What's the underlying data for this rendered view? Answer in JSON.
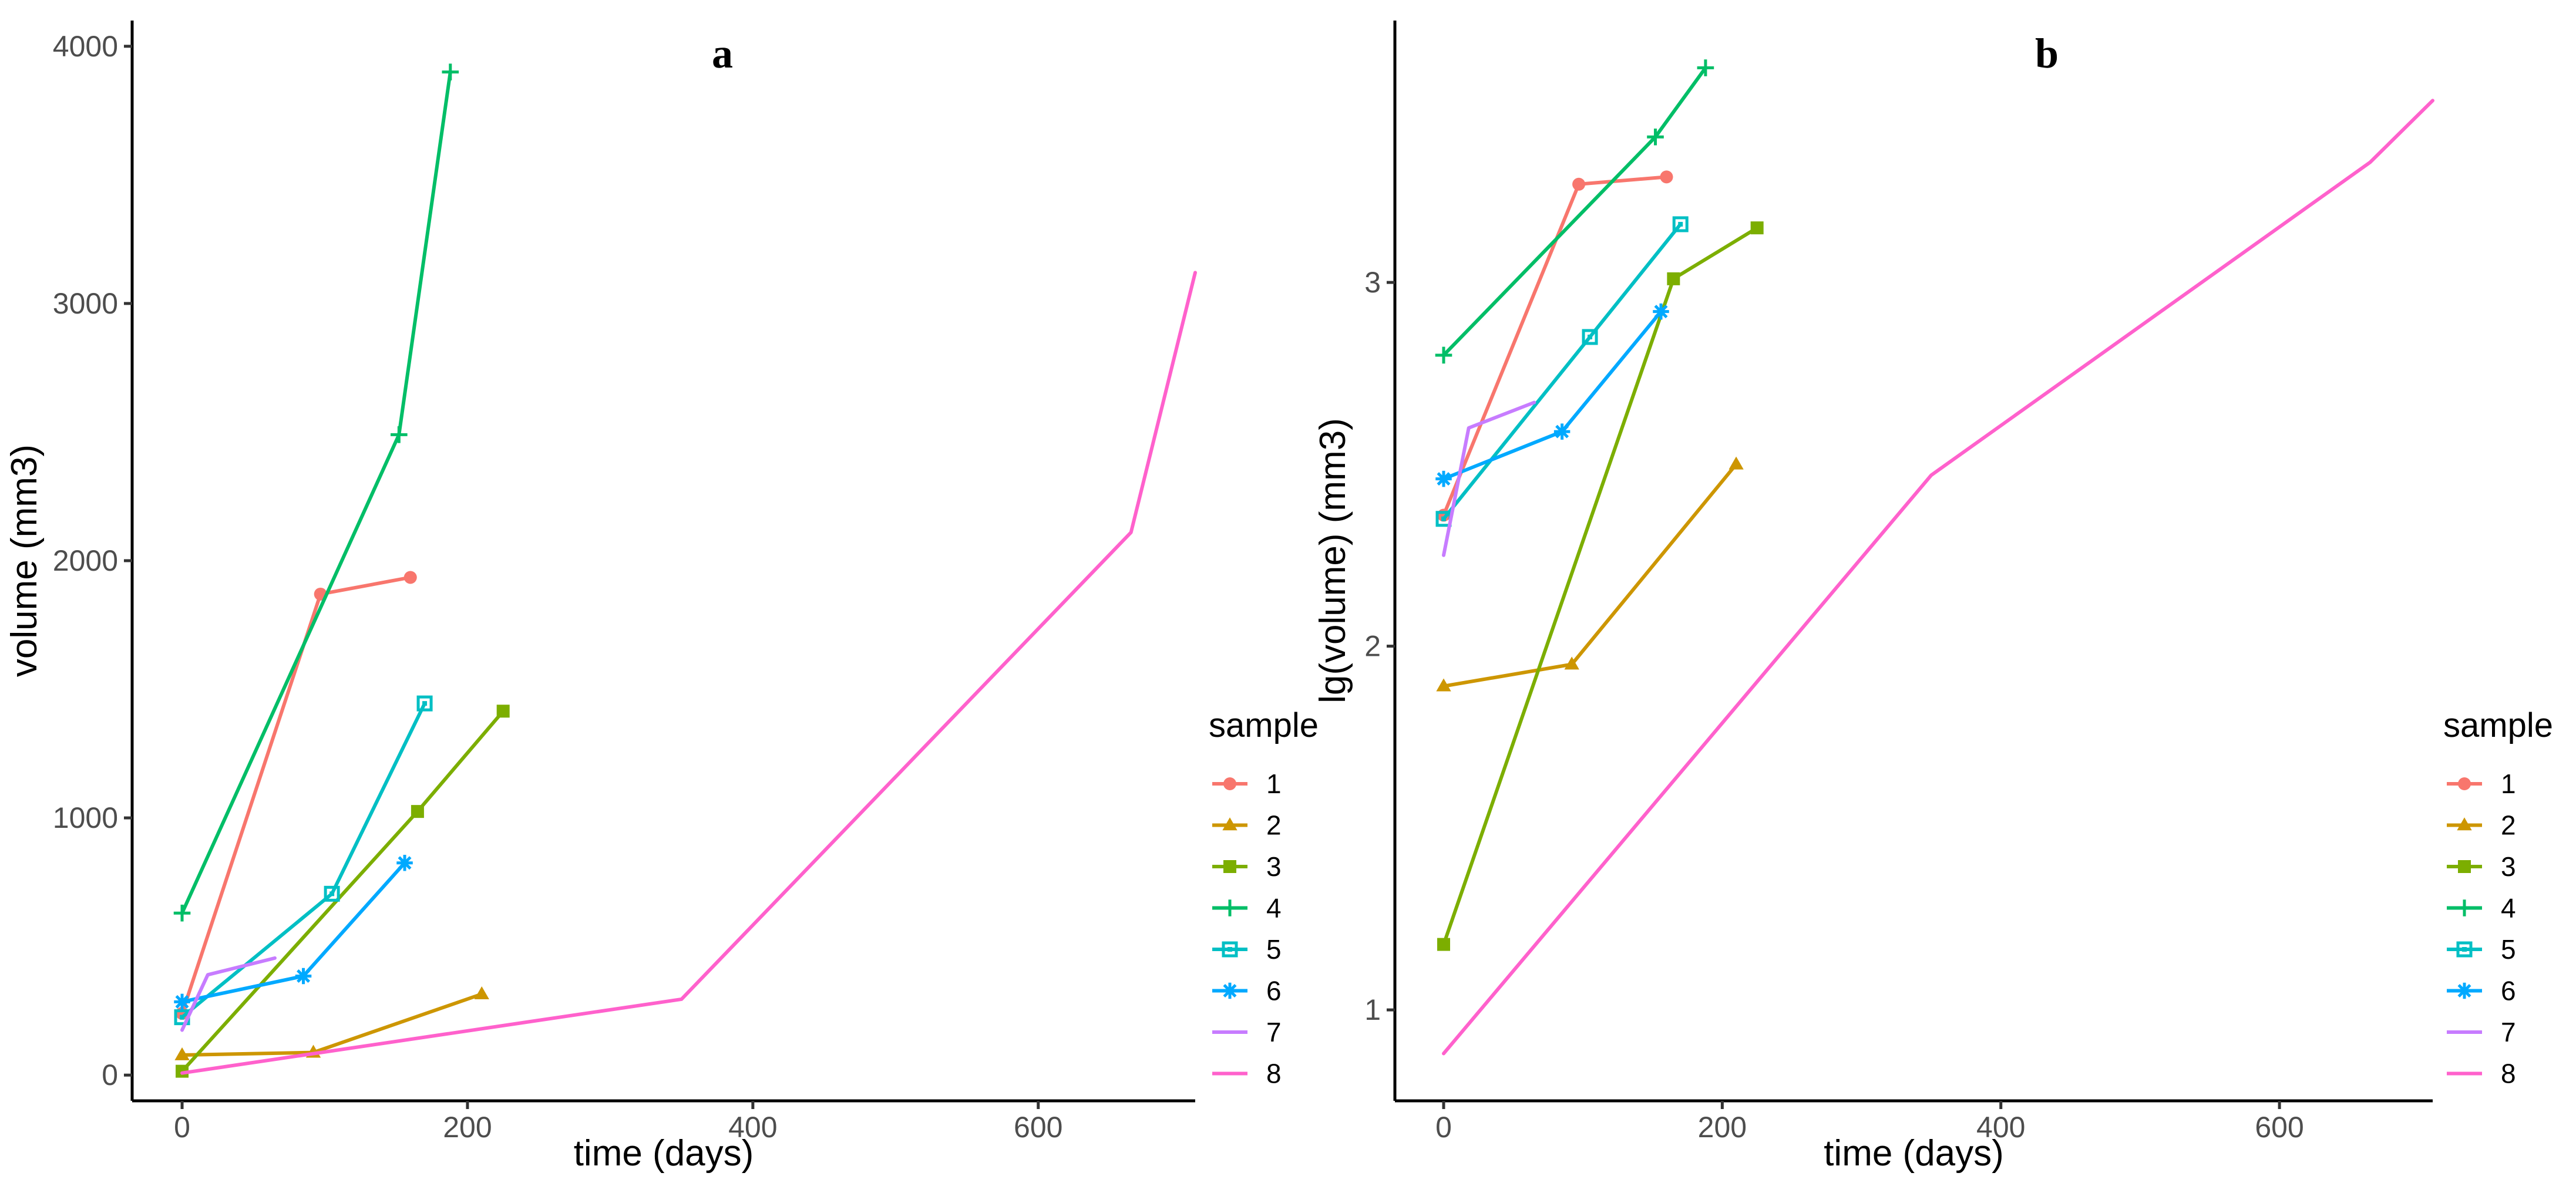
{
  "chart_data": [
    {
      "type": "line",
      "title": "a",
      "xlabel": "time (days)",
      "ylabel": "volume (mm3)",
      "xlim": [
        -35,
        710
      ],
      "ylim": [
        -100,
        4100
      ],
      "xticks": [
        0,
        200,
        400,
        600
      ],
      "yticks": [
        0,
        1000,
        2000,
        3000,
        4000
      ],
      "legend_title": "sample",
      "legend_position": "right",
      "series": [
        {
          "name": "1",
          "color": "#F8766D",
          "marker": "circle",
          "x": [
            0,
            97,
            160
          ],
          "y": [
            240,
            1870,
            1935
          ]
        },
        {
          "name": "2",
          "color": "#CD9600",
          "marker": "triangle",
          "x": [
            0,
            92,
            210
          ],
          "y": [
            78,
            88,
            315
          ]
        },
        {
          "name": "3",
          "color": "#7CAE00",
          "marker": "square",
          "x": [
            0,
            165,
            225
          ],
          "y": [
            15,
            1025,
            1415
          ]
        },
        {
          "name": "4",
          "color": "#00BE67",
          "marker": "plus",
          "x": [
            0,
            152,
            188
          ],
          "y": [
            630,
            2490,
            3900
          ]
        },
        {
          "name": "5",
          "color": "#00BFC4",
          "marker": "boxsquare",
          "x": [
            0,
            105,
            170
          ],
          "y": [
            225,
            705,
            1445
          ]
        },
        {
          "name": "6",
          "color": "#00A9FF",
          "marker": "asterisk",
          "x": [
            0,
            85,
            156
          ],
          "y": [
            285,
            385,
            825
          ]
        },
        {
          "name": "7",
          "color": "#C77CFF",
          "marker": "none",
          "x": [
            0,
            18,
            65
          ],
          "y": [
            175,
            390,
            455
          ]
        },
        {
          "name": "8",
          "color": "#FF61CC",
          "marker": "none",
          "x": [
            0,
            350,
            665,
            710
          ],
          "y": [
            8,
            295,
            2110,
            3120
          ]
        }
      ]
    },
    {
      "type": "line",
      "title": "b",
      "xlabel": "time (days)",
      "ylabel": "lg(volume) (mm3)",
      "xlim": [
        -35,
        710
      ],
      "ylim": [
        0.75,
        3.72
      ],
      "xticks": [
        0,
        200,
        400,
        600
      ],
      "yticks": [
        1,
        2,
        3
      ],
      "legend_title": "sample",
      "legend_position": "right",
      "series": [
        {
          "name": "1",
          "color": "#F8766D",
          "marker": "circle",
          "x": [
            0,
            97,
            160
          ],
          "y": [
            2.36,
            3.27,
            3.29
          ]
        },
        {
          "name": "2",
          "color": "#CD9600",
          "marker": "triangle",
          "x": [
            0,
            92,
            210
          ],
          "y": [
            1.89,
            1.95,
            2.5
          ]
        },
        {
          "name": "3",
          "color": "#7CAE00",
          "marker": "square",
          "x": [
            0,
            165,
            225
          ],
          "y": [
            1.18,
            3.01,
            3.15
          ]
        },
        {
          "name": "4",
          "color": "#00BE67",
          "marker": "plus",
          "x": [
            0,
            152,
            188
          ],
          "y": [
            2.8,
            3.4,
            3.59
          ]
        },
        {
          "name": "5",
          "color": "#00BFC4",
          "marker": "boxsquare",
          "x": [
            0,
            105,
            170
          ],
          "y": [
            2.35,
            2.85,
            3.16
          ]
        },
        {
          "name": "6",
          "color": "#00A9FF",
          "marker": "asterisk",
          "x": [
            0,
            85,
            156
          ],
          "y": [
            2.46,
            2.59,
            2.92
          ]
        },
        {
          "name": "7",
          "color": "#C77CFF",
          "marker": "none",
          "x": [
            0,
            18,
            65
          ],
          "y": [
            2.25,
            2.6,
            2.67
          ]
        },
        {
          "name": "8",
          "color": "#FF61CC",
          "marker": "none",
          "x": [
            0,
            350,
            665,
            710
          ],
          "y": [
            0.88,
            2.47,
            3.33,
            3.5
          ]
        }
      ]
    }
  ]
}
